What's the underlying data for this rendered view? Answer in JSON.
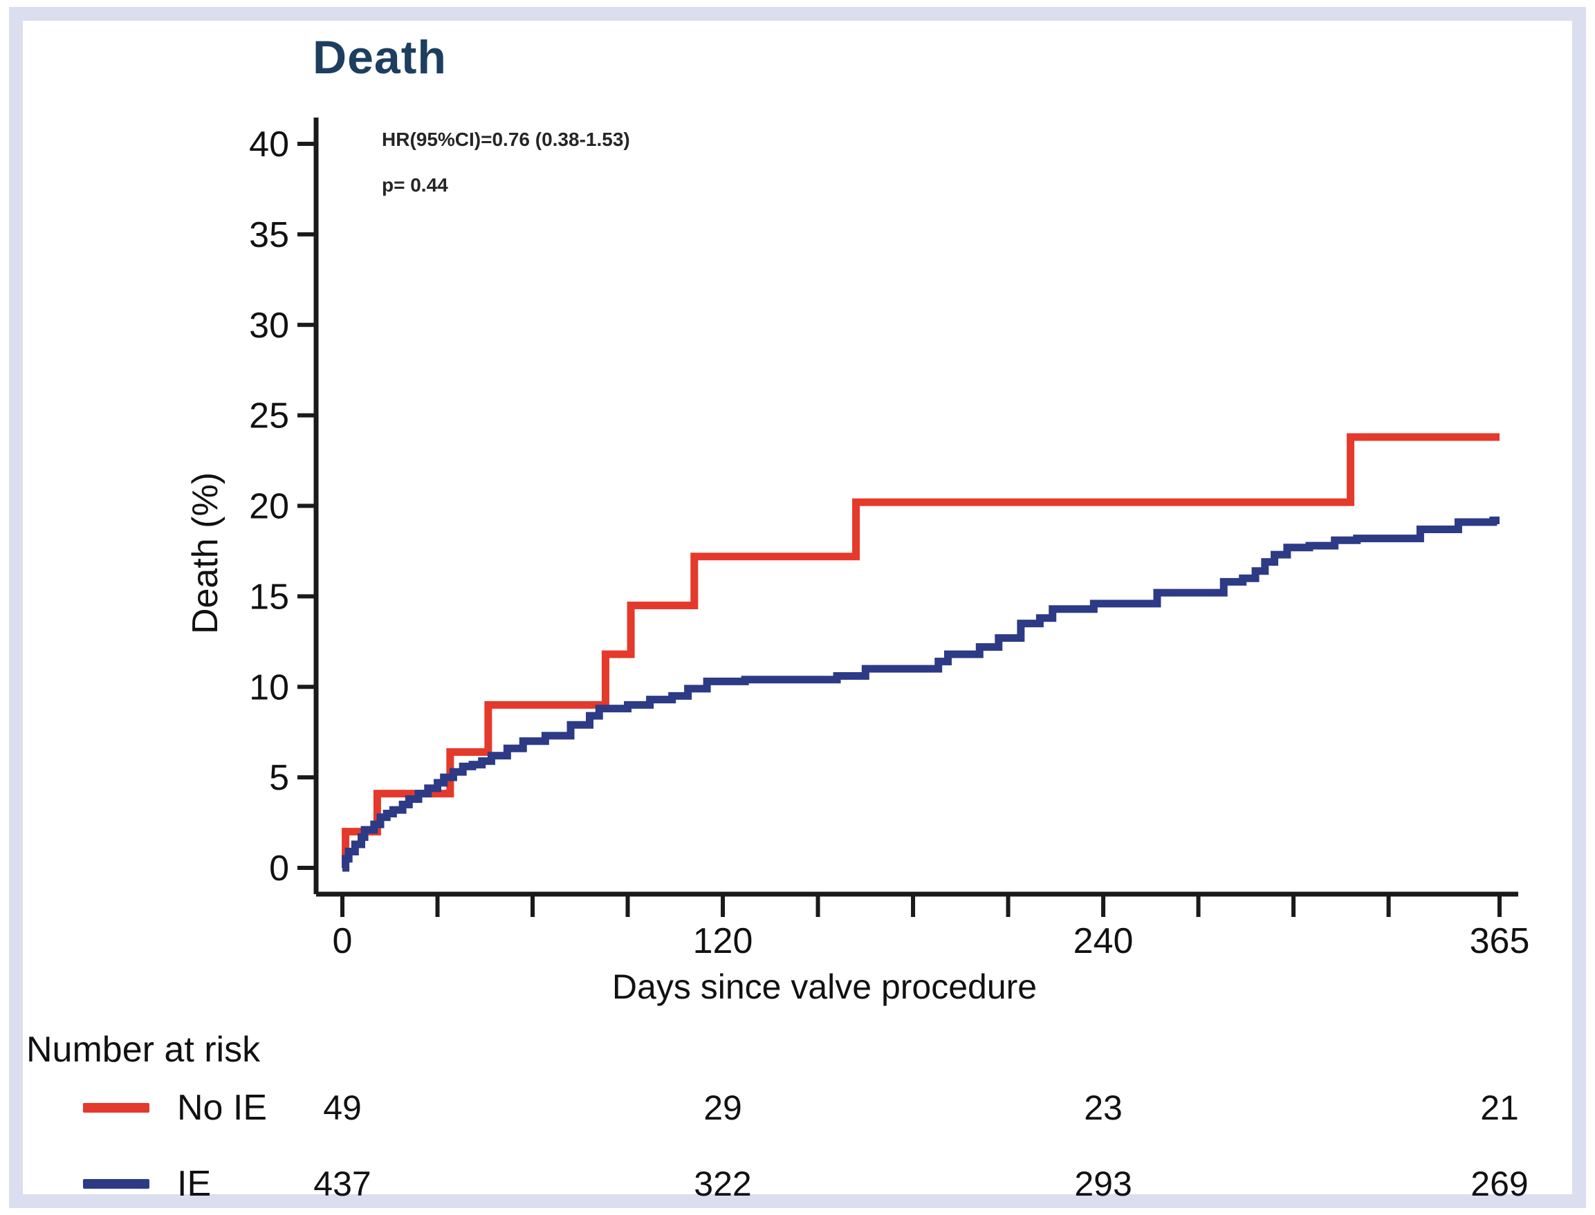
{
  "title": "Death",
  "annotation": {
    "line1": "HR(95%CI)=0.76 (0.38-1.53)",
    "line2": "p= 0.44"
  },
  "colors": {
    "no_ie_red": "#e5392b",
    "ie_navy": "#2d3a85",
    "title_navy": "#1d3e5e",
    "axis_black": "#1a1a1a",
    "frame_periwinkle": "#dadeee"
  },
  "chart_data": {
    "type": "line",
    "subtype": "kaplan-meier-step",
    "title": "Death",
    "xlabel": "Days since valve procedure",
    "ylabel": "Death (%)",
    "xlim": [
      0,
      365
    ],
    "ylim": [
      0,
      40
    ],
    "grid": false,
    "legend_position": "risk-table-left",
    "y_ticks": [
      0,
      5,
      10,
      15,
      20,
      25,
      30,
      35,
      40
    ],
    "x_major_ticks": [
      {
        "value": 0,
        "label": "0"
      },
      {
        "value": 120,
        "label": "120"
      },
      {
        "value": 240,
        "label": "240"
      },
      {
        "value": 365,
        "label": "365"
      }
    ],
    "x_minor_tick_values": [
      30,
      60,
      90,
      150,
      180,
      210,
      270,
      300,
      330
    ],
    "series": [
      {
        "name": "No IE",
        "color": "#e5392b",
        "points_day_pct": [
          [
            0,
            0
          ],
          [
            1,
            2.0
          ],
          [
            11,
            4.1
          ],
          [
            34,
            6.4
          ],
          [
            46,
            9.0
          ],
          [
            83,
            11.8
          ],
          [
            91,
            14.5
          ],
          [
            111,
            17.2
          ],
          [
            162,
            20.2
          ],
          [
            318,
            23.8
          ],
          [
            365,
            23.8
          ]
        ]
      },
      {
        "name": "IE",
        "color": "#2d3a85",
        "points_day_pct": [
          [
            0,
            0
          ],
          [
            1,
            0.5
          ],
          [
            2,
            0.9
          ],
          [
            4,
            1.3
          ],
          [
            6,
            1.7
          ],
          [
            7,
            2.1
          ],
          [
            10,
            2.4
          ],
          [
            12,
            2.8
          ],
          [
            14,
            3.0
          ],
          [
            16,
            3.2
          ],
          [
            19,
            3.5
          ],
          [
            21,
            3.8
          ],
          [
            24,
            4.1
          ],
          [
            27,
            4.4
          ],
          [
            30,
            4.7
          ],
          [
            32,
            5.0
          ],
          [
            35,
            5.3
          ],
          [
            38,
            5.6
          ],
          [
            41,
            5.7
          ],
          [
            44,
            5.9
          ],
          [
            47,
            6.2
          ],
          [
            52,
            6.6
          ],
          [
            57,
            7.0
          ],
          [
            64,
            7.3
          ],
          [
            72,
            7.9
          ],
          [
            78,
            8.4
          ],
          [
            81,
            8.8
          ],
          [
            90,
            9.0
          ],
          [
            97,
            9.3
          ],
          [
            104,
            9.5
          ],
          [
            109,
            9.9
          ],
          [
            115,
            10.3
          ],
          [
            127,
            10.4
          ],
          [
            156,
            10.6
          ],
          [
            165,
            11.0
          ],
          [
            188,
            11.4
          ],
          [
            191,
            11.8
          ],
          [
            201,
            12.2
          ],
          [
            207,
            12.7
          ],
          [
            214,
            13.5
          ],
          [
            220,
            13.8
          ],
          [
            224,
            14.3
          ],
          [
            237,
            14.6
          ],
          [
            257,
            15.2
          ],
          [
            278,
            15.8
          ],
          [
            284,
            16.0
          ],
          [
            288,
            16.4
          ],
          [
            291,
            16.9
          ],
          [
            294,
            17.3
          ],
          [
            298,
            17.7
          ],
          [
            305,
            17.8
          ],
          [
            313,
            18.1
          ],
          [
            320,
            18.2
          ],
          [
            340,
            18.7
          ],
          [
            352,
            19.1
          ],
          [
            363,
            19.2
          ],
          [
            365,
            19.2
          ]
        ]
      }
    ]
  },
  "risk_table": {
    "header": "Number at risk",
    "columns_days": [
      0,
      120,
      240,
      365
    ],
    "rows": [
      {
        "label": "No IE",
        "color": "#e5392b",
        "values": [
          "49",
          "29",
          "23",
          "21"
        ]
      },
      {
        "label": "IE",
        "color": "#2d3a85",
        "values": [
          "437",
          "322",
          "293",
          "269"
        ]
      }
    ]
  }
}
